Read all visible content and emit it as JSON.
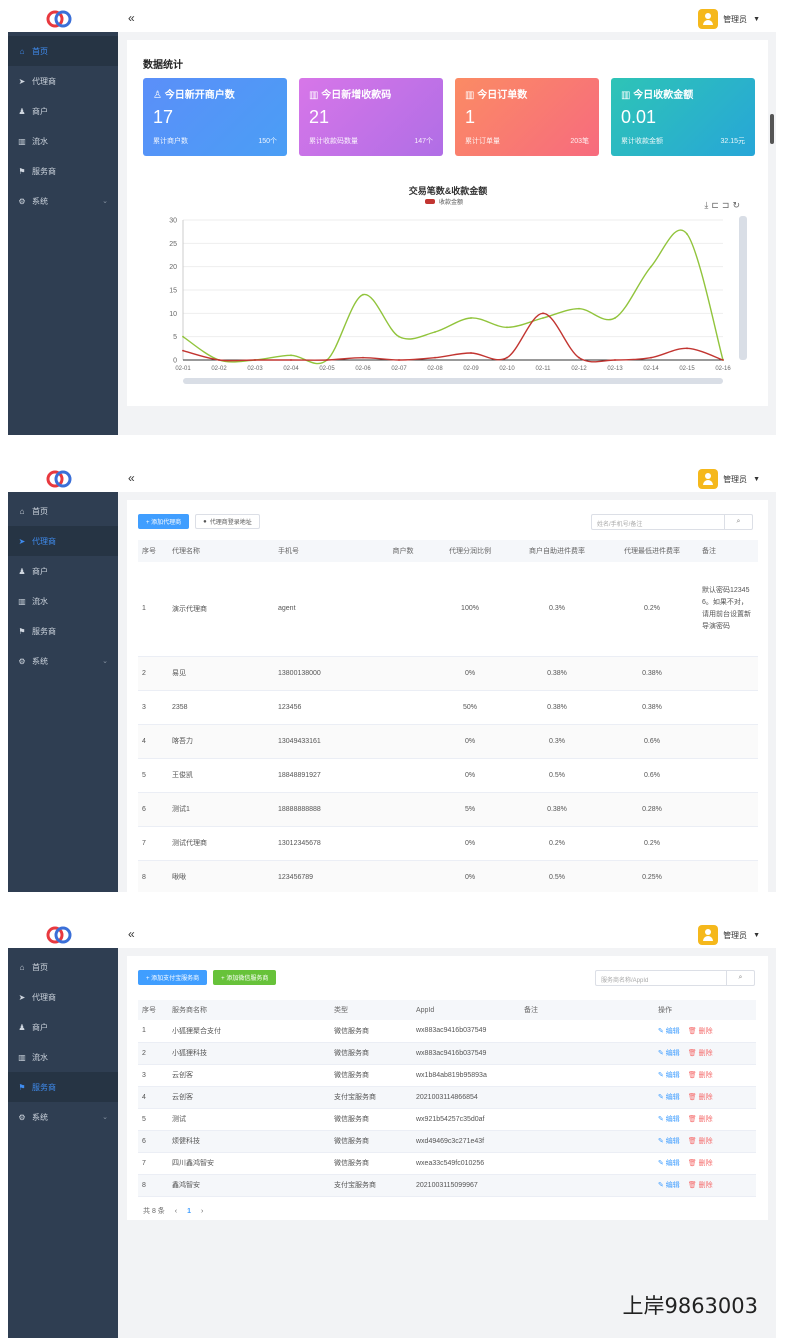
{
  "colors": {
    "sidebar": "#2f3e52",
    "accent": "#3f8cf0",
    "avatar": "#f5b81c"
  },
  "header": {
    "collapse_icon": "«",
    "user_name": "管理员",
    "caret": "▼"
  },
  "menu": [
    {
      "label": "首页",
      "icon": "home-icon",
      "glyph": "⌂"
    },
    {
      "label": "代理商",
      "icon": "send-icon",
      "glyph": "➤"
    },
    {
      "label": "商户",
      "icon": "user-icon",
      "glyph": "♟"
    },
    {
      "label": "流水",
      "icon": "bar-chart-icon",
      "glyph": "▥"
    },
    {
      "label": "服务商",
      "icon": "flag-icon",
      "glyph": "⚑"
    },
    {
      "label": "系统",
      "icon": "gear-icon",
      "glyph": "⚙"
    }
  ],
  "dashboard": {
    "section_title": "数据统计",
    "cards": [
      {
        "title": "今日新开商户数",
        "value": "17",
        "foot_label": "累计商户数",
        "foot_value": "150个"
      },
      {
        "title": "今日新增收款码",
        "value": "21",
        "foot_label": "累计收款码数量",
        "foot_value": "147个"
      },
      {
        "title": "今日订单数",
        "value": "1",
        "foot_label": "累计订单量",
        "foot_value": "203笔"
      },
      {
        "title": "今日收款金额",
        "value": "0.01",
        "foot_label": "累计收款金额",
        "foot_value": "32.15元"
      }
    ]
  },
  "chart_data": {
    "type": "line",
    "title": "交易笔数&收款金额",
    "legend": [
      "收款金额"
    ],
    "categories": [
      "02-01",
      "02-02",
      "02-03",
      "02-04",
      "02-05",
      "02-06",
      "02-07",
      "02-08",
      "02-09",
      "02-10",
      "02-11",
      "02-12",
      "02-13",
      "02-14",
      "02-15",
      "02-16"
    ],
    "ylim": [
      0,
      30
    ],
    "yticks": [
      0,
      5,
      10,
      15,
      20,
      25,
      30
    ],
    "series": [
      {
        "color": "#91c43c",
        "values": [
          5,
          0,
          0,
          1,
          0,
          14,
          5,
          6,
          9,
          7,
          9,
          11,
          9,
          20,
          27,
          0
        ]
      },
      {
        "name": "收款金额",
        "color": "#c23531",
        "values": [
          2,
          0,
          0,
          0,
          0,
          0.5,
          0,
          0.5,
          1.5,
          0.5,
          10,
          0.5,
          0,
          0.5,
          2.5,
          0
        ]
      }
    ]
  },
  "agents": {
    "add_button": "+ 添加代理商",
    "login_button": "代理商登录地址",
    "search_placeholder": "姓名/手机号/备注",
    "columns": [
      "序号",
      "代理名称",
      "手机号",
      "商户数",
      "代理分润比例",
      "商户自助进件费率",
      "代理最低进件费率",
      "备注"
    ],
    "rows": [
      [
        "1",
        "演示代理商",
        "agent",
        "",
        "100%",
        "0.3%",
        "0.2%",
        "默认密码123456。如果不对，请用前台设置新导演密码"
      ],
      [
        "2",
        "易见",
        "13800138000",
        "",
        "0%",
        "0.38%",
        "0.38%",
        ""
      ],
      [
        "3",
        "2358",
        "123456",
        "",
        "50%",
        "0.38%",
        "0.38%",
        ""
      ],
      [
        "4",
        "喀吾力",
        "13049433161",
        "",
        "0%",
        "0.3%",
        "0.6%",
        ""
      ],
      [
        "5",
        "王俊凯",
        "18848891927",
        "",
        "0%",
        "0.5%",
        "0.6%",
        ""
      ],
      [
        "6",
        "测试1",
        "18888888888",
        "",
        "5%",
        "0.38%",
        "0.28%",
        ""
      ],
      [
        "7",
        "测试代理商",
        "13012345678",
        "",
        "0%",
        "0.2%",
        "0.2%",
        ""
      ],
      [
        "8",
        "啾啾",
        "123456789",
        "",
        "0%",
        "0.5%",
        "0.25%",
        ""
      ]
    ]
  },
  "providers": {
    "add_wechat_button": "+ 添加支付宝服务商",
    "add_alipay_button": "+ 添加微信服务商",
    "search_placeholder": "服务商名称/AppId",
    "columns": [
      "序号",
      "服务商名称",
      "类型",
      "AppId",
      "备注",
      "操作"
    ],
    "edit_label": "编辑",
    "delete_label": "删除",
    "rows": [
      [
        "1",
        "小狐狸聚合支付",
        "微信服务商",
        "wx883ac9416b037549"
      ],
      [
        "2",
        "小狐狸科技",
        "微信服务商",
        "wx883ac9416b037549"
      ],
      [
        "3",
        "云创客",
        "微信服务商",
        "wx1b84ab819b95893a"
      ],
      [
        "4",
        "云创客",
        "支付宝服务商",
        "2021003114866854"
      ],
      [
        "5",
        "测试",
        "微信服务商",
        "wx921b54257c35d0af"
      ],
      [
        "6",
        "烦健科技",
        "微信服务商",
        "wxd49469c3c271e43f"
      ],
      [
        "7",
        "四川鑫鸿智安",
        "微信服务商",
        "wxea33c549fc010256"
      ],
      [
        "8",
        "鑫鸿智安",
        "支付宝服务商",
        "2021003115099967"
      ]
    ],
    "pager": {
      "total": "共 8 条",
      "prev": "‹",
      "page": "1",
      "next": "›"
    }
  },
  "watermark": "上岸9863003"
}
